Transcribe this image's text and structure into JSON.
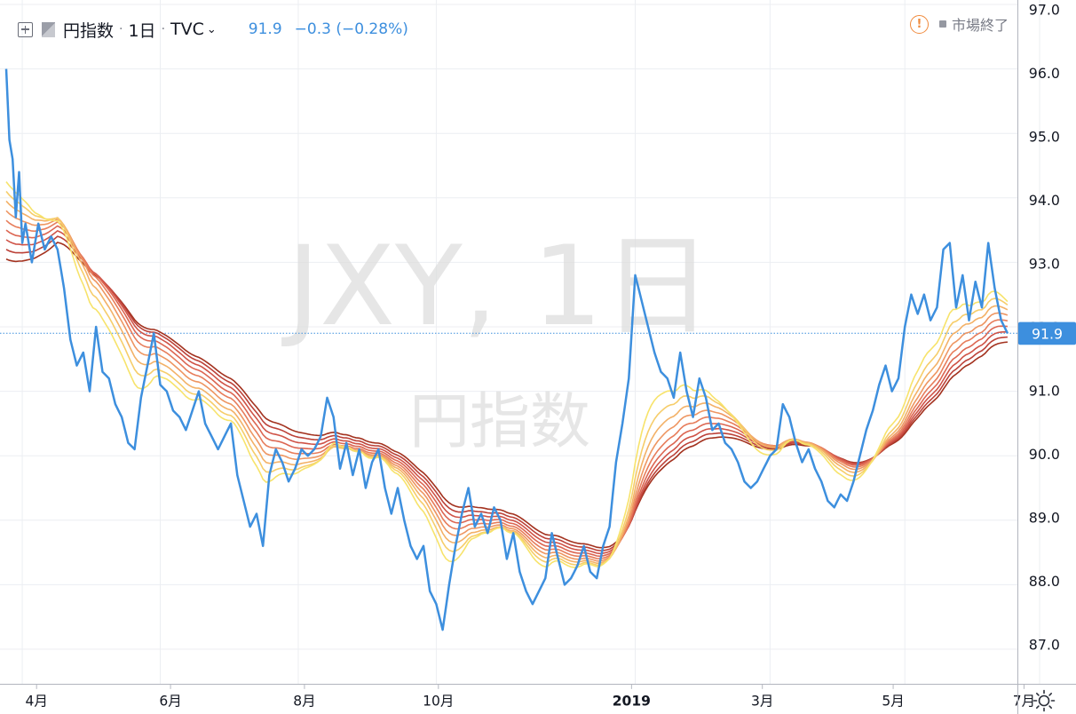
{
  "legend": {
    "symbol": "円指数",
    "interval": "1日",
    "source": "TVC",
    "price": "91.9",
    "change": "−0.3 (−0.28%)"
  },
  "status": {
    "text": "市場終了"
  },
  "watermark": {
    "symbol": "JXY, 1日",
    "name": "円指数"
  },
  "colors": {
    "price_line": "#3d8fde",
    "ribbon": [
      "#f7e36b",
      "#f6cd6a",
      "#f3b167",
      "#ee9662",
      "#e77d5b",
      "#dc6652",
      "#cf5347",
      "#bc4239",
      "#a3321f"
    ],
    "axis_text": "#131722",
    "warning": "#f08a3c"
  },
  "chart_data": {
    "type": "line",
    "title": "JXY, 1日",
    "ylim": [
      86.8,
      97.0
    ],
    "y_ticks": [
      "87.0",
      "88.0",
      "89.0",
      "90.0",
      "91.0",
      "92.0",
      "93.0",
      "94.0",
      "95.0",
      "96.0",
      "97.0"
    ],
    "x_ticks": [
      {
        "label": "4月",
        "x": 5
      },
      {
        "label": "6月",
        "x": 48
      },
      {
        "label": "8月",
        "x": 91
      },
      {
        "label": "10月",
        "x": 134
      },
      {
        "label": "2019",
        "x": 196
      },
      {
        "label": "3月",
        "x": 238
      },
      {
        "label": "5月",
        "x": 280
      },
      {
        "label": "7月",
        "x": 322
      }
    ],
    "last_price": 91.9,
    "last_price_label": "91.9",
    "price_anchors": [
      [
        0,
        96.0
      ],
      [
        1,
        94.9
      ],
      [
        2,
        94.6
      ],
      [
        3,
        93.7
      ],
      [
        4,
        94.4
      ],
      [
        5,
        93.3
      ],
      [
        6,
        93.6
      ],
      [
        8,
        93.0
      ],
      [
        10,
        93.6
      ],
      [
        12,
        93.2
      ],
      [
        14,
        93.4
      ],
      [
        16,
        93.2
      ],
      [
        18,
        92.6
      ],
      [
        20,
        91.8
      ],
      [
        22,
        91.4
      ],
      [
        24,
        91.6
      ],
      [
        26,
        91.0
      ],
      [
        28,
        92.0
      ],
      [
        30,
        91.3
      ],
      [
        32,
        91.2
      ],
      [
        34,
        90.8
      ],
      [
        36,
        90.6
      ],
      [
        38,
        90.2
      ],
      [
        40,
        90.1
      ],
      [
        42,
        90.9
      ],
      [
        44,
        91.4
      ],
      [
        46,
        91.9
      ],
      [
        48,
        91.1
      ],
      [
        50,
        91.0
      ],
      [
        52,
        90.7
      ],
      [
        54,
        90.6
      ],
      [
        56,
        90.4
      ],
      [
        58,
        90.7
      ],
      [
        60,
        91.0
      ],
      [
        62,
        90.5
      ],
      [
        64,
        90.3
      ],
      [
        66,
        90.1
      ],
      [
        68,
        90.3
      ],
      [
        70,
        90.5
      ],
      [
        72,
        89.7
      ],
      [
        74,
        89.3
      ],
      [
        76,
        88.9
      ],
      [
        78,
        89.1
      ],
      [
        80,
        88.6
      ],
      [
        82,
        89.7
      ],
      [
        84,
        90.1
      ],
      [
        86,
        89.9
      ],
      [
        88,
        89.6
      ],
      [
        90,
        89.8
      ],
      [
        92,
        90.1
      ],
      [
        94,
        90.0
      ],
      [
        96,
        90.1
      ],
      [
        98,
        90.3
      ],
      [
        100,
        90.9
      ],
      [
        102,
        90.6
      ],
      [
        104,
        89.8
      ],
      [
        106,
        90.2
      ],
      [
        108,
        89.7
      ],
      [
        110,
        90.1
      ],
      [
        112,
        89.5
      ],
      [
        114,
        89.9
      ],
      [
        116,
        90.1
      ],
      [
        118,
        89.5
      ],
      [
        120,
        89.1
      ],
      [
        122,
        89.5
      ],
      [
        124,
        89.0
      ],
      [
        126,
        88.6
      ],
      [
        128,
        88.4
      ],
      [
        130,
        88.6
      ],
      [
        132,
        87.9
      ],
      [
        134,
        87.7
      ],
      [
        136,
        87.3
      ],
      [
        138,
        88.0
      ],
      [
        140,
        88.6
      ],
      [
        142,
        89.1
      ],
      [
        144,
        89.5
      ],
      [
        146,
        88.9
      ],
      [
        148,
        89.1
      ],
      [
        150,
        88.8
      ],
      [
        152,
        89.2
      ],
      [
        154,
        89.0
      ],
      [
        156,
        88.4
      ],
      [
        158,
        88.8
      ],
      [
        160,
        88.2
      ],
      [
        162,
        87.9
      ],
      [
        164,
        87.7
      ],
      [
        166,
        87.9
      ],
      [
        168,
        88.1
      ],
      [
        170,
        88.8
      ],
      [
        172,
        88.4
      ],
      [
        174,
        88.0
      ],
      [
        176,
        88.1
      ],
      [
        178,
        88.3
      ],
      [
        180,
        88.6
      ],
      [
        182,
        88.2
      ],
      [
        184,
        88.1
      ],
      [
        186,
        88.6
      ],
      [
        188,
        88.9
      ],
      [
        190,
        89.9
      ],
      [
        192,
        90.5
      ],
      [
        194,
        91.2
      ],
      [
        196,
        92.8
      ],
      [
        198,
        92.4
      ],
      [
        200,
        92.0
      ],
      [
        202,
        91.6
      ],
      [
        204,
        91.3
      ],
      [
        206,
        91.2
      ],
      [
        208,
        90.9
      ],
      [
        210,
        91.6
      ],
      [
        212,
        91.0
      ],
      [
        214,
        90.6
      ],
      [
        216,
        91.2
      ],
      [
        218,
        90.9
      ],
      [
        220,
        90.4
      ],
      [
        222,
        90.5
      ],
      [
        224,
        90.2
      ],
      [
        226,
        90.1
      ],
      [
        228,
        89.9
      ],
      [
        230,
        89.6
      ],
      [
        232,
        89.5
      ],
      [
        234,
        89.6
      ],
      [
        236,
        89.8
      ],
      [
        238,
        90.0
      ],
      [
        240,
        90.1
      ],
      [
        242,
        90.8
      ],
      [
        244,
        90.6
      ],
      [
        246,
        90.2
      ],
      [
        248,
        89.9
      ],
      [
        250,
        90.1
      ],
      [
        252,
        89.8
      ],
      [
        254,
        89.6
      ],
      [
        256,
        89.3
      ],
      [
        258,
        89.2
      ],
      [
        260,
        89.4
      ],
      [
        262,
        89.3
      ],
      [
        264,
        89.6
      ],
      [
        266,
        90.0
      ],
      [
        268,
        90.4
      ],
      [
        270,
        90.7
      ],
      [
        272,
        91.1
      ],
      [
        274,
        91.4
      ],
      [
        276,
        91.0
      ],
      [
        278,
        91.2
      ],
      [
        280,
        92.0
      ],
      [
        282,
        92.5
      ],
      [
        284,
        92.2
      ],
      [
        286,
        92.5
      ],
      [
        288,
        92.1
      ],
      [
        290,
        92.3
      ],
      [
        292,
        93.2
      ],
      [
        294,
        93.3
      ],
      [
        296,
        92.3
      ],
      [
        298,
        92.8
      ],
      [
        300,
        92.1
      ],
      [
        302,
        92.7
      ],
      [
        304,
        92.3
      ],
      [
        306,
        93.3
      ],
      [
        308,
        92.6
      ],
      [
        310,
        92.1
      ],
      [
        312,
        91.9
      ]
    ],
    "ribbon_windows": [
      20,
      25,
      30,
      35,
      40,
      45,
      50,
      55,
      60
    ],
    "ribbon_warmup": [
      [
        94.25,
        92.95
      ],
      [
        94.1,
        92.9
      ],
      [
        93.95,
        92.85
      ],
      [
        93.8,
        92.8
      ],
      [
        93.65,
        92.75
      ],
      [
        93.5,
        92.7
      ],
      [
        93.35,
        92.65
      ],
      [
        93.2,
        92.6
      ],
      [
        93.05,
        92.55
      ]
    ]
  }
}
